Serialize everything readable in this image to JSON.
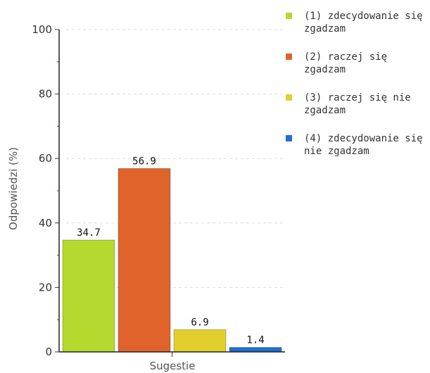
{
  "chart_data": {
    "type": "bar",
    "ylabel": "Odpowiedzi (%)",
    "xlabel": "Sugestie",
    "ylim": [
      0,
      100
    ],
    "yticks": [
      0,
      20,
      40,
      60,
      80,
      100
    ],
    "grid": true,
    "legend_position": "right",
    "series": [
      {
        "name": "(1) zdecydowanie się zgadzam",
        "value": 34.7,
        "label": "34.7",
        "color": "#b5d92e"
      },
      {
        "name": "(2) raczej się zgadzam",
        "value": 56.9,
        "label": "56.9",
        "color": "#e0632b"
      },
      {
        "name": "(3) raczej się nie zgadzam",
        "value": 6.9,
        "label": "6.9",
        "color": "#e2cf2e"
      },
      {
        "name": "(4) zdecydowanie się nie zgadzam",
        "value": 1.4,
        "label": "1.4",
        "color": "#1f6fd1"
      }
    ]
  }
}
